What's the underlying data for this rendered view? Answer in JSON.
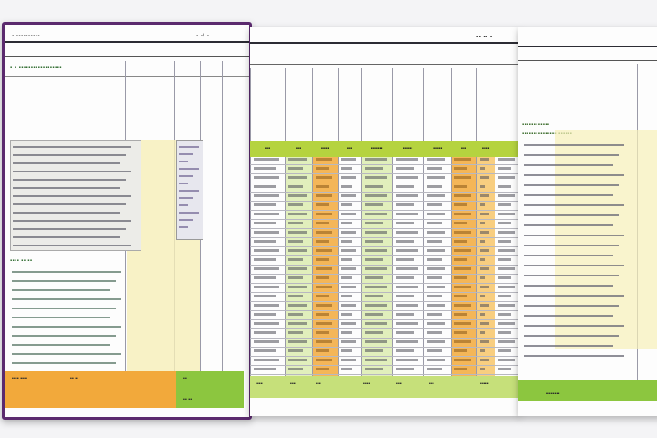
{
  "colors": {
    "background": "#f4f4f6",
    "sheet": "#fdfdfd",
    "purple_border": "#5b2a6e",
    "green_header": "#b5d33f",
    "green_footer": "#8cc63f",
    "orange": "#f2a93b",
    "light_green": "#dcecb0",
    "yellow_band": "#f6efb8"
  },
  "left_sheet": {
    "title": "▪ ▪▪▪▪▪▪▪▪▪▪",
    "title_right": "▪  ▪/ ▪",
    "header_code": "▪ ▪ ▪▪▪▪▪▪▪▪▪▪▪▪▪▪▪▪▪▪",
    "section_label": "▪▪▪▪ ▪▪ ▪▪",
    "footer_left": "▪▪▪▪ ▪▪▪▪",
    "footer_mid": "▪▪ ▪▪",
    "footer_right": "▪▪",
    "footer_bottom": "▪▪ ▪▪"
  },
  "center_sheet": {
    "title": "▪▪ ▪▪ ▪",
    "headers": [
      "▪▪▪",
      "▪▪▪",
      "▪▪▪▪",
      "▪▪▪",
      "▪▪▪▪▪▪",
      "▪▪▪▪▪",
      "▪▪▪▪▪",
      "▪▪▪",
      "▪▪▪▪"
    ],
    "footer": [
      "▪▪▪▪",
      "▪▪▪",
      "▪▪▪",
      "▪▪▪▪",
      "▪▪▪",
      "▪▪▪",
      "▪▪▪▪▪"
    ]
  },
  "right_sheet": {
    "header_rows": [
      "▪▪▪▪▪▪▪▪▪▪▪▪",
      "▪▪▪▪▪▪▪▪▪▪▪▪▪▪▪ ▪▪▪▪▪▪"
    ],
    "footer": "▪▪▪▪▪▪▪▪"
  }
}
